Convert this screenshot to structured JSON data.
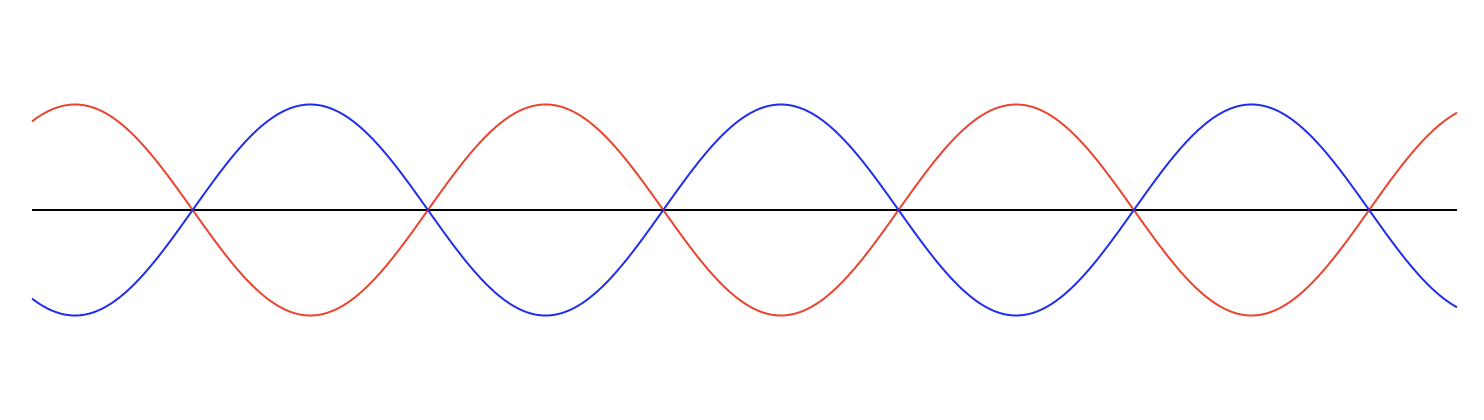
{
  "colors": {
    "background": "#ffffff",
    "axis": "#000000",
    "wave_a": "#e8442e",
    "wave_b": "#1f2ee8"
  },
  "waves": [
    {
      "id": "wave-a",
      "color_key": "wave_a",
      "phase": "cosine",
      "periods": 3
    },
    {
      "id": "wave-b",
      "color_key": "wave_b",
      "phase": "negative-cosine",
      "periods": 3
    }
  ],
  "axis": {
    "type": "horizontal-baseline"
  }
}
